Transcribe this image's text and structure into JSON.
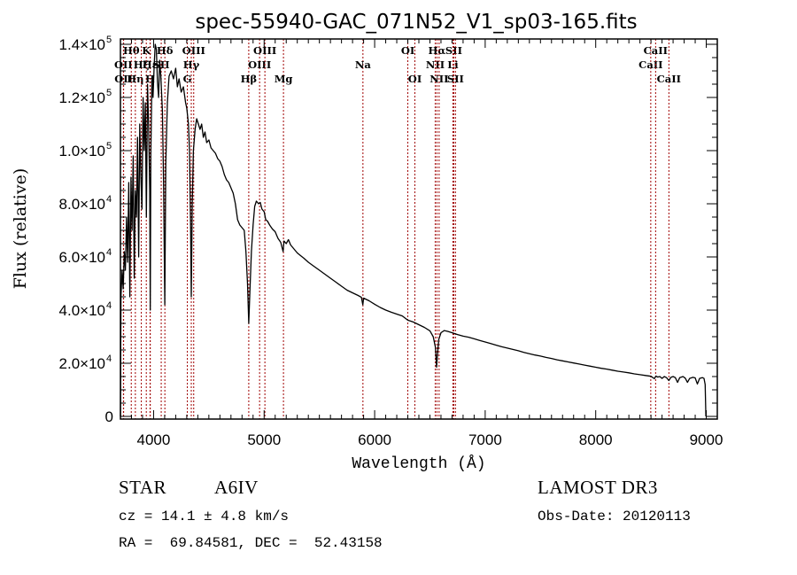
{
  "chart_data": {
    "type": "line",
    "title": "spec-55940-GAC_071N52_V1_sp03-165.fits",
    "xlabel": "Wavelength (Å)",
    "ylabel": "Flux (relative)",
    "xlim": [
      3700,
      9100
    ],
    "ylim": [
      -1000,
      142000
    ],
    "grid": false,
    "x_ticks": [
      {
        "value": 4000,
        "label": "4000"
      },
      {
        "value": 5000,
        "label": "5000"
      },
      {
        "value": 6000,
        "label": "6000"
      },
      {
        "value": 7000,
        "label": "7000"
      },
      {
        "value": 8000,
        "label": "8000"
      },
      {
        "value": 9000,
        "label": "9000"
      }
    ],
    "y_ticks": [
      {
        "value": 0,
        "mant": "0",
        "exp": ""
      },
      {
        "value": 20000,
        "mant": "2.0×10",
        "exp": "4"
      },
      {
        "value": 40000,
        "mant": "4.0×10",
        "exp": "4"
      },
      {
        "value": 60000,
        "mant": "6.0×10",
        "exp": "4"
      },
      {
        "value": 80000,
        "mant": "8.0×10",
        "exp": "4"
      },
      {
        "value": 100000,
        "mant": "1.0×10",
        "exp": "5"
      },
      {
        "value": 120000,
        "mant": "1.2×10",
        "exp": "5"
      },
      {
        "value": 140000,
        "mant": "1.4×10",
        "exp": "5"
      }
    ],
    "series": [
      {
        "name": "spectrum",
        "color": "#000000",
        "points": [
          [
            3700,
            0
          ],
          [
            3705,
            45000
          ],
          [
            3715,
            55000
          ],
          [
            3725,
            48000
          ],
          [
            3735,
            62000
          ],
          [
            3745,
            55000
          ],
          [
            3755,
            75000
          ],
          [
            3765,
            58000
          ],
          [
            3775,
            88000
          ],
          [
            3785,
            45000
          ],
          [
            3795,
            90000
          ],
          [
            3805,
            70000
          ],
          [
            3815,
            98000
          ],
          [
            3825,
            52000
          ],
          [
            3835,
            85000
          ],
          [
            3845,
            75000
          ],
          [
            3855,
            105000
          ],
          [
            3865,
            60000
          ],
          [
            3875,
            110000
          ],
          [
            3885,
            90000
          ],
          [
            3895,
            78000
          ],
          [
            3905,
            120000
          ],
          [
            3915,
            100000
          ],
          [
            3925,
            118000
          ],
          [
            3935,
            75000
          ],
          [
            3945,
            125000
          ],
          [
            3955,
            110000
          ],
          [
            3965,
            85000
          ],
          [
            3970,
            40000
          ],
          [
            3975,
            98000
          ],
          [
            3985,
            128000
          ],
          [
            3995,
            120000
          ],
          [
            4005,
            132000
          ],
          [
            4015,
            140000
          ],
          [
            4025,
            138000
          ],
          [
            4035,
            126000
          ],
          [
            4045,
            120000
          ],
          [
            4055,
            134000
          ],
          [
            4065,
            128000
          ],
          [
            4080,
            115000
          ],
          [
            4090,
            88000
          ],
          [
            4101,
            42000
          ],
          [
            4110,
            95000
          ],
          [
            4125,
            118000
          ],
          [
            4140,
            128000
          ],
          [
            4160,
            130000
          ],
          [
            4180,
            127000
          ],
          [
            4200,
            131000
          ],
          [
            4215,
            124000
          ],
          [
            4230,
            127000
          ],
          [
            4250,
            122000
          ],
          [
            4270,
            124000
          ],
          [
            4290,
            118000
          ],
          [
            4300,
            116000
          ],
          [
            4315,
            110000
          ],
          [
            4325,
            100000
          ],
          [
            4335,
            70000
          ],
          [
            4341,
            45000
          ],
          [
            4350,
            80000
          ],
          [
            4360,
            100000
          ],
          [
            4375,
            108000
          ],
          [
            4390,
            112000
          ],
          [
            4405,
            110000
          ],
          [
            4420,
            108000
          ],
          [
            4435,
            110000
          ],
          [
            4450,
            105000
          ],
          [
            4465,
            107000
          ],
          [
            4480,
            103000
          ],
          [
            4500,
            104000
          ],
          [
            4520,
            101000
          ],
          [
            4540,
            100000
          ],
          [
            4560,
            99000
          ],
          [
            4580,
            97000
          ],
          [
            4600,
            96000
          ],
          [
            4620,
            94000
          ],
          [
            4640,
            91000
          ],
          [
            4660,
            89000
          ],
          [
            4680,
            88000
          ],
          [
            4700,
            86000
          ],
          [
            4720,
            84000
          ],
          [
            4740,
            80000
          ],
          [
            4760,
            74000
          ],
          [
            4780,
            72000
          ],
          [
            4800,
            71000
          ],
          [
            4820,
            70000
          ],
          [
            4835,
            62000
          ],
          [
            4850,
            50000
          ],
          [
            4861,
            35000
          ],
          [
            4872,
            48000
          ],
          [
            4885,
            62000
          ],
          [
            4900,
            72000
          ],
          [
            4915,
            79000
          ],
          [
            4930,
            81000
          ],
          [
            4950,
            80000
          ],
          [
            4965,
            80500
          ],
          [
            4980,
            78000
          ],
          [
            5000,
            77000
          ],
          [
            5015,
            74000
          ],
          [
            5030,
            73500
          ],
          [
            5050,
            72000
          ],
          [
            5075,
            70500
          ],
          [
            5100,
            69500
          ],
          [
            5125,
            67000
          ],
          [
            5150,
            65500
          ],
          [
            5172,
            62000
          ],
          [
            5180,
            66000
          ],
          [
            5200,
            65000
          ],
          [
            5220,
            66500
          ],
          [
            5240,
            64500
          ],
          [
            5260,
            63500
          ],
          [
            5280,
            62500
          ],
          [
            5300,
            61500
          ],
          [
            5330,
            60500
          ],
          [
            5360,
            59500
          ],
          [
            5400,
            58000
          ],
          [
            5450,
            56500
          ],
          [
            5500,
            55000
          ],
          [
            5550,
            53500
          ],
          [
            5600,
            52000
          ],
          [
            5650,
            50500
          ],
          [
            5700,
            49000
          ],
          [
            5750,
            47500
          ],
          [
            5800,
            46500
          ],
          [
            5850,
            45500
          ],
          [
            5880,
            44800
          ],
          [
            5893,
            42000
          ],
          [
            5900,
            44500
          ],
          [
            5950,
            43500
          ],
          [
            6000,
            42200
          ],
          [
            6050,
            41000
          ],
          [
            6100,
            40000
          ],
          [
            6150,
            39200
          ],
          [
            6200,
            38500
          ],
          [
            6250,
            37800
          ],
          [
            6300,
            36200
          ],
          [
            6330,
            35800
          ],
          [
            6350,
            35500
          ],
          [
            6400,
            34500
          ],
          [
            6450,
            33500
          ],
          [
            6500,
            32200
          ],
          [
            6530,
            30000
          ],
          [
            6550,
            26000
          ],
          [
            6560,
            18500
          ],
          [
            6570,
            24000
          ],
          [
            6580,
            29000
          ],
          [
            6600,
            31500
          ],
          [
            6630,
            32300
          ],
          [
            6660,
            32000
          ],
          [
            6700,
            31500
          ],
          [
            6750,
            30800
          ],
          [
            6800,
            30200
          ],
          [
            6850,
            29800
          ],
          [
            6900,
            29200
          ],
          [
            6950,
            28600
          ],
          [
            7000,
            28000
          ],
          [
            7050,
            27400
          ],
          [
            7100,
            26800
          ],
          [
            7150,
            26200
          ],
          [
            7200,
            25700
          ],
          [
            7250,
            25200
          ],
          [
            7300,
            24700
          ],
          [
            7350,
            24100
          ],
          [
            7400,
            23600
          ],
          [
            7450,
            23100
          ],
          [
            7500,
            22700
          ],
          [
            7550,
            22200
          ],
          [
            7600,
            21800
          ],
          [
            7650,
            21300
          ],
          [
            7700,
            20900
          ],
          [
            7750,
            20500
          ],
          [
            7800,
            20100
          ],
          [
            7850,
            19700
          ],
          [
            7900,
            19300
          ],
          [
            7950,
            18900
          ],
          [
            8000,
            18500
          ],
          [
            8050,
            18100
          ],
          [
            8100,
            17800
          ],
          [
            8150,
            17400
          ],
          [
            8200,
            17000
          ],
          [
            8250,
            16700
          ],
          [
            8300,
            16400
          ],
          [
            8350,
            16000
          ],
          [
            8400,
            15700
          ],
          [
            8450,
            15400
          ],
          [
            8500,
            15100
          ],
          [
            8530,
            14200
          ],
          [
            8545,
            15200
          ],
          [
            8560,
            14800
          ],
          [
            8580,
            15000
          ],
          [
            8600,
            14300
          ],
          [
            8620,
            15000
          ],
          [
            8640,
            14600
          ],
          [
            8662,
            13500
          ],
          [
            8680,
            14700
          ],
          [
            8700,
            15000
          ],
          [
            8720,
            14600
          ],
          [
            8740,
            12800
          ],
          [
            8760,
            14600
          ],
          [
            8790,
            15000
          ],
          [
            8810,
            14400
          ],
          [
            8830,
            12800
          ],
          [
            8850,
            14300
          ],
          [
            8880,
            14700
          ],
          [
            8900,
            14500
          ],
          [
            8920,
            12200
          ],
          [
            8940,
            14300
          ],
          [
            8965,
            14600
          ],
          [
            8980,
            14300
          ],
          [
            8990,
            12000
          ],
          [
            8997,
            0
          ]
        ]
      }
    ],
    "line_markers": [
      {
        "name": "OII",
        "wavelength": 3727,
        "row": 2
      },
      {
        "name": "OII",
        "wavelength": 3729,
        "row": 3
      },
      {
        "name": "Hθ",
        "wavelength": 3798,
        "row": 1
      },
      {
        "name": "Hη",
        "wavelength": 3835,
        "row": 3
      },
      {
        "name": "Hζ",
        "wavelength": 3889,
        "row": 2
      },
      {
        "name": "K",
        "wavelength": 3934,
        "row": 1
      },
      {
        "name": "H",
        "wavelength": 3968,
        "row": 3
      },
      {
        "name": "Hε",
        "wavelength": 3970,
        "row": 2
      },
      {
        "name": "SII",
        "wavelength": 4069,
        "row": 2
      },
      {
        "name": "Hδ",
        "wavelength": 4102,
        "row": 1
      },
      {
        "name": "G",
        "wavelength": 4305,
        "row": 3
      },
      {
        "name": "Hγ",
        "wavelength": 4341,
        "row": 2
      },
      {
        "name": "OIII",
        "wavelength": 4363,
        "row": 1
      },
      {
        "name": "Hβ",
        "wavelength": 4861,
        "row": 3
      },
      {
        "name": "OIII",
        "wavelength": 4959,
        "row": 2
      },
      {
        "name": "OIII",
        "wavelength": 5007,
        "row": 1
      },
      {
        "name": "Mg",
        "wavelength": 5175,
        "row": 3
      },
      {
        "name": "Na",
        "wavelength": 5894,
        "row": 2
      },
      {
        "name": "OI",
        "wavelength": 6300,
        "row": 1
      },
      {
        "name": "OI",
        "wavelength": 6364,
        "row": 3
      },
      {
        "name": "NII",
        "wavelength": 6548,
        "row": 2
      },
      {
        "name": "Hα",
        "wavelength": 6563,
        "row": 1
      },
      {
        "name": "NII",
        "wavelength": 6583,
        "row": 3
      },
      {
        "name": "Li",
        "wavelength": 6708,
        "row": 2
      },
      {
        "name": "SII",
        "wavelength": 6716,
        "row": 1
      },
      {
        "name": "SII",
        "wavelength": 6731,
        "row": 3
      },
      {
        "name": "CaII",
        "wavelength": 8498,
        "row": 2
      },
      {
        "name": "CaII",
        "wavelength": 8542,
        "row": 1
      },
      {
        "name": "CaII",
        "wavelength": 8662,
        "row": 3
      }
    ],
    "marker_color": "#a00000"
  },
  "info": {
    "object_class": "STAR",
    "subclass": "A6IV",
    "survey": "LAMOST DR3",
    "redshift": "cz = 14.1 ± 4.8 km/s",
    "obs_date": "Obs-Date: 20120113",
    "coords": "RA =  69.84581, DEC =  52.43158"
  }
}
